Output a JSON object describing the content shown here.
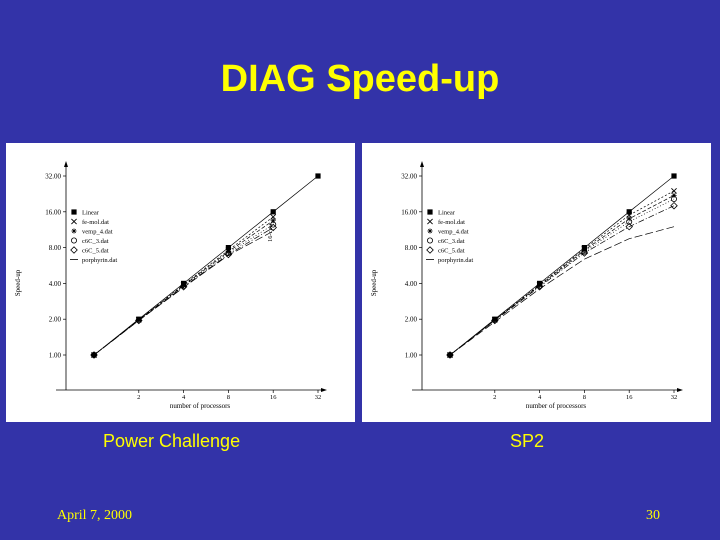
{
  "slide": {
    "title": "DIAG Speed-up",
    "date": "April 7, 2000",
    "page_number": "30"
  },
  "chart_data": [
    {
      "type": "line",
      "caption": "Power Challenge",
      "xlabel": "number of processors",
      "ylabel": "Speed-up",
      "x": [
        1,
        2,
        4,
        8,
        16,
        32
      ],
      "x_tick_labels": [
        "2",
        "4",
        "8",
        "16",
        "32"
      ],
      "y_tick_labels": [
        "1.00",
        "2.00",
        "4.00",
        "8.00",
        "16.00",
        "32.00"
      ],
      "y_ticks": [
        1,
        2,
        4,
        8,
        16,
        32
      ],
      "xlim": [
        1,
        32
      ],
      "ylim": [
        1,
        32
      ],
      "log_scale": "log2 both axes",
      "legend_position": "top-left",
      "side_annotation": "16-cpu",
      "series": [
        {
          "name": "Linear",
          "values": [
            1,
            2,
            4,
            8,
            16,
            32
          ]
        },
        {
          "name": "fe-mol.dat",
          "values": [
            1,
            1.98,
            3.9,
            7.6,
            14.5,
            null
          ]
        },
        {
          "name": "vemp_4.dat",
          "values": [
            1,
            1.97,
            3.85,
            7.4,
            13.5,
            null
          ]
        },
        {
          "name": "c6C_3.dat",
          "values": [
            1,
            1.96,
            3.8,
            7.2,
            12.5,
            null
          ]
        },
        {
          "name": "c6C_5.dat",
          "values": [
            1,
            1.95,
            3.75,
            7.0,
            11.8,
            null
          ]
        },
        {
          "name": "porphyrin.dat",
          "values": [
            1,
            1.95,
            3.7,
            6.9,
            11.0,
            null
          ]
        }
      ]
    },
    {
      "type": "line",
      "caption": "SP2",
      "xlabel": "number of processors",
      "ylabel": "Speed-up",
      "x": [
        1,
        2,
        4,
        8,
        16,
        32
      ],
      "x_tick_labels": [
        "2",
        "4",
        "8",
        "16",
        "32"
      ],
      "y_tick_labels": [
        "1.00",
        "2.00",
        "4.00",
        "8.00",
        "16.00",
        "32.00"
      ],
      "y_ticks": [
        1,
        2,
        4,
        8,
        16,
        32
      ],
      "xlim": [
        1,
        32
      ],
      "ylim": [
        1,
        32
      ],
      "log_scale": "log2 both axes",
      "legend_position": "top-left",
      "series": [
        {
          "name": "Linear",
          "values": [
            1,
            2,
            4,
            8,
            16,
            32
          ]
        },
        {
          "name": "fe-mol.dat",
          "values": [
            1,
            1.98,
            3.9,
            7.8,
            15,
            24
          ]
        },
        {
          "name": "vemp_4.dat",
          "values": [
            1,
            1.97,
            3.85,
            7.6,
            14,
            22
          ]
        },
        {
          "name": "c6C_3.dat",
          "values": [
            1,
            1.96,
            3.8,
            7.4,
            13.2,
            20.5
          ]
        },
        {
          "name": "c6C_5.dat",
          "values": [
            1,
            1.95,
            3.75,
            7.2,
            12,
            18
          ]
        },
        {
          "name": "porphyrin.dat",
          "values": [
            1,
            1.9,
            3.6,
            6.4,
            9.5,
            12
          ]
        }
      ]
    }
  ]
}
